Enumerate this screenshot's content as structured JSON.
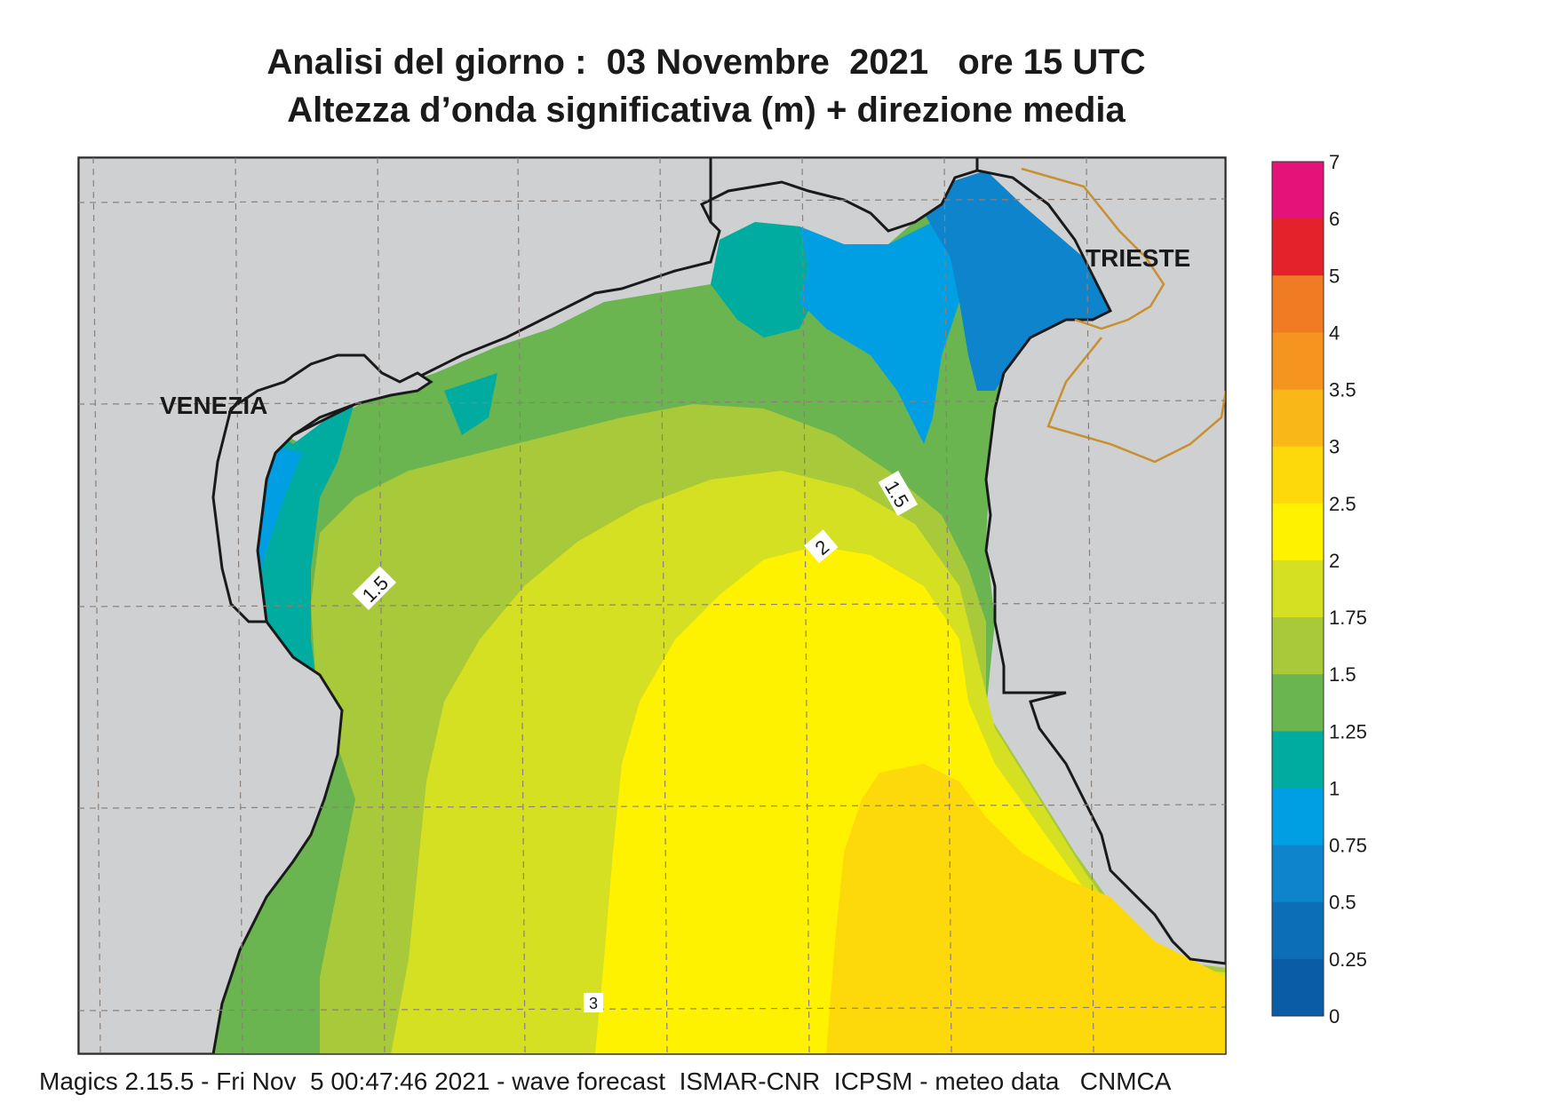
{
  "title": {
    "line1": "Analisi del giorno :  03 Novembre  2021   ore 15 UTC",
    "line2": "Altezza d’onda significativa (m) + direzione media"
  },
  "places": [
    {
      "name": "VENEZIA"
    },
    {
      "name": "TRIESTE"
    }
  ],
  "contour_labels": [
    "1.5",
    "1.5",
    "2",
    "3"
  ],
  "legend": {
    "ticks": [
      "7",
      "6",
      "5",
      "4",
      "3.5",
      "3",
      "2.5",
      "2",
      "1.75",
      "1.5",
      "1.25",
      "1",
      "0.75",
      "0.5",
      "0.25",
      "0"
    ],
    "colors": [
      "#e5127a",
      "#e4222b",
      "#f07b22",
      "#f5951f",
      "#f9b718",
      "#fdd90b",
      "#fff200",
      "#d5e022",
      "#a7c93a",
      "#6ab550",
      "#00ab9f",
      "#009fe3",
      "#0e84cc",
      "#0d6eb8",
      "#0a5ca6"
    ]
  },
  "colors": {
    "land": "#cfd0d2",
    "coast": "#1a1a1a",
    "border": "#c8902e",
    "grid": "#8c8078"
  },
  "footer": "Magics 2.15.5 - Fri Nov  5 00:47:46 2021 - wave forecast  ISMAR-CNR  ICPSM - meteo data   CNMCA"
}
